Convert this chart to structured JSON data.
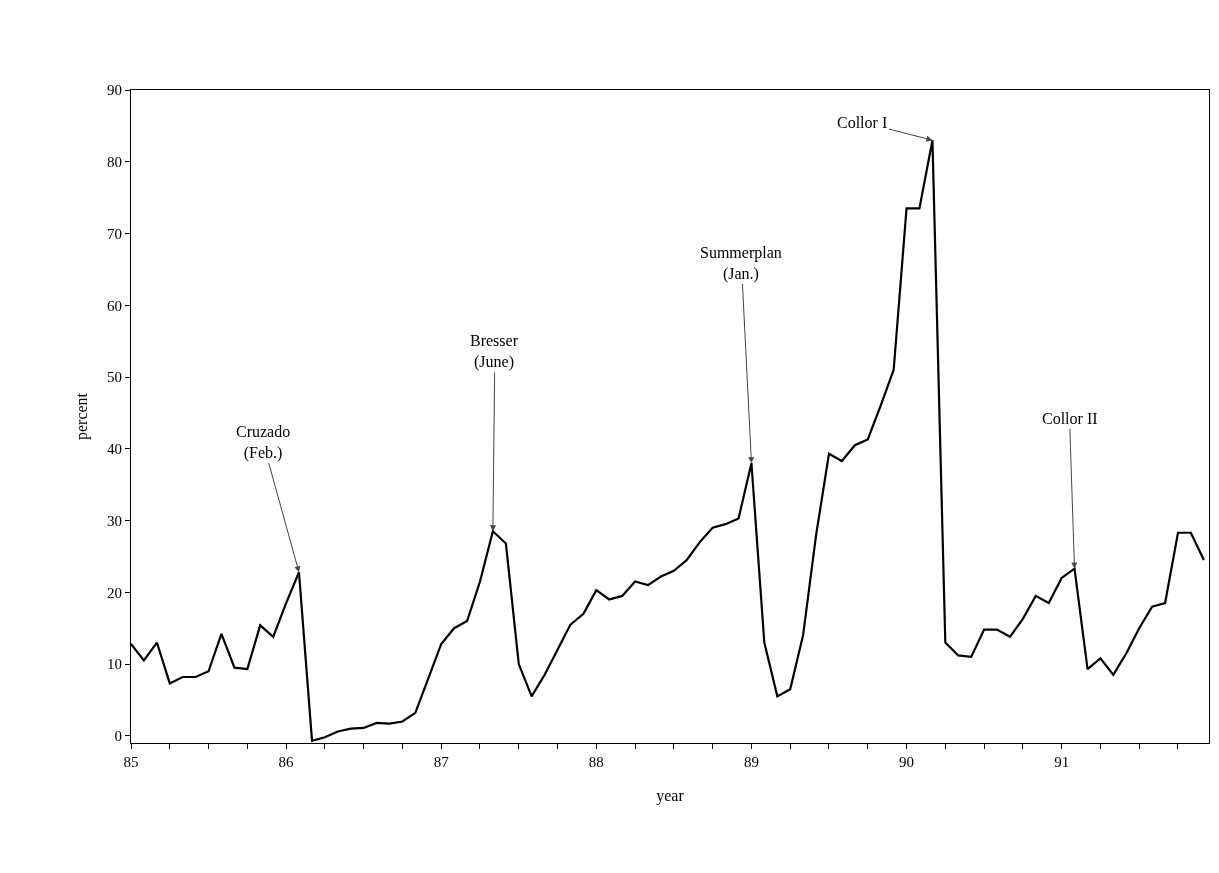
{
  "chart_data": {
    "type": "line",
    "xlabel": "year",
    "ylabel": "percent",
    "x": [
      85.0,
      85.083,
      85.167,
      85.25,
      85.333,
      85.417,
      85.5,
      85.583,
      85.667,
      85.75,
      85.833,
      85.917,
      86.0,
      86.083,
      86.167,
      86.25,
      86.333,
      86.417,
      86.5,
      86.583,
      86.667,
      86.75,
      86.833,
      86.917,
      87.0,
      87.083,
      87.167,
      87.25,
      87.333,
      87.417,
      87.5,
      87.583,
      87.667,
      87.75,
      87.833,
      87.917,
      88.0,
      88.083,
      88.167,
      88.25,
      88.333,
      88.417,
      88.5,
      88.583,
      88.667,
      88.75,
      88.833,
      88.917,
      89.0,
      89.083,
      89.167,
      89.25,
      89.333,
      89.417,
      89.5,
      89.583,
      89.667,
      89.75,
      89.833,
      89.917,
      90.0,
      90.083,
      90.167,
      90.25,
      90.333,
      90.417,
      90.5,
      90.583,
      90.667,
      90.75,
      90.833,
      90.917,
      91.0,
      91.083,
      91.167,
      91.25,
      91.333,
      91.417,
      91.5,
      91.583,
      91.667,
      91.75,
      91.833,
      91.917
    ],
    "series": [
      {
        "color": "#000000",
        "values": [
          12.8,
          10.5,
          13,
          7.3,
          8.2,
          8.2,
          9,
          14.2,
          9.5,
          9.3,
          15.4,
          13.8,
          18.5,
          22.8,
          -0.7,
          -0.2,
          0.6,
          1,
          1.1,
          1.8,
          1.7,
          2,
          3.2,
          8,
          12.8,
          15,
          16,
          21.5,
          28.5,
          26.8,
          10,
          5.5,
          8.5,
          12,
          15.5,
          17,
          20.3,
          19,
          19.5,
          21.5,
          21,
          22.2,
          23,
          24.5,
          27,
          29,
          29.5,
          30.3,
          38,
          13,
          5.5,
          6.5,
          14,
          28,
          39.3,
          38.3,
          40.5,
          41.3,
          46,
          51,
          73.5,
          73.5,
          83,
          13,
          11.2,
          11,
          14.8,
          14.8,
          13.8,
          16.3,
          19.5,
          18.5,
          22,
          23.3,
          9.3,
          10.8,
          8.5,
          11.5,
          15,
          18,
          18.5,
          28.3,
          28.3,
          24.5
        ]
      }
    ],
    "xlim": [
      85,
      91.95
    ],
    "ylim": [
      -1,
      90
    ],
    "xticks": [
      85,
      {
        "value": 85.25,
        "label": null
      },
      {
        "value": 85.5,
        "label": null
      },
      {
        "value": 85.75,
        "label": null
      },
      86,
      {
        "value": 86.25,
        "label": null
      },
      {
        "value": 86.5,
        "label": null
      },
      {
        "value": 86.75,
        "label": null
      },
      87,
      {
        "value": 87.25,
        "label": null
      },
      {
        "value": 87.5,
        "label": null
      },
      {
        "value": 87.75,
        "label": null
      },
      88,
      {
        "value": 88.25,
        "label": null
      },
      {
        "value": 88.5,
        "label": null
      },
      {
        "value": 88.75,
        "label": null
      },
      89,
      {
        "value": 89.25,
        "label": null
      },
      {
        "value": 89.5,
        "label": null
      },
      {
        "value": 89.75,
        "label": null
      },
      90,
      {
        "value": 90.25,
        "label": null
      },
      {
        "value": 90.5,
        "label": null
      },
      {
        "value": 90.75,
        "label": null
      },
      91,
      {
        "value": 91.25,
        "label": null
      },
      {
        "value": 91.5,
        "label": null
      },
      {
        "value": 91.75,
        "label": null
      }
    ],
    "yticks": [
      0,
      10,
      20,
      30,
      40,
      50,
      60,
      70,
      80,
      90
    ],
    "annotations": [
      {
        "text": "Cruzado\n(Feb.)",
        "x": 86.083,
        "y": 22.8
      },
      {
        "text": "Bresser\n(June)",
        "x": 87.333,
        "y": 28.5
      },
      {
        "text": "Summerplan\n(Jan.)",
        "x": 89.0,
        "y": 38
      },
      {
        "text": "Collor I",
        "x": 90.167,
        "y": 83
      },
      {
        "text": "Collor II",
        "x": 91.083,
        "y": 23.3
      }
    ],
    "grid": false,
    "marker": "none",
    "line_style": "solid"
  }
}
